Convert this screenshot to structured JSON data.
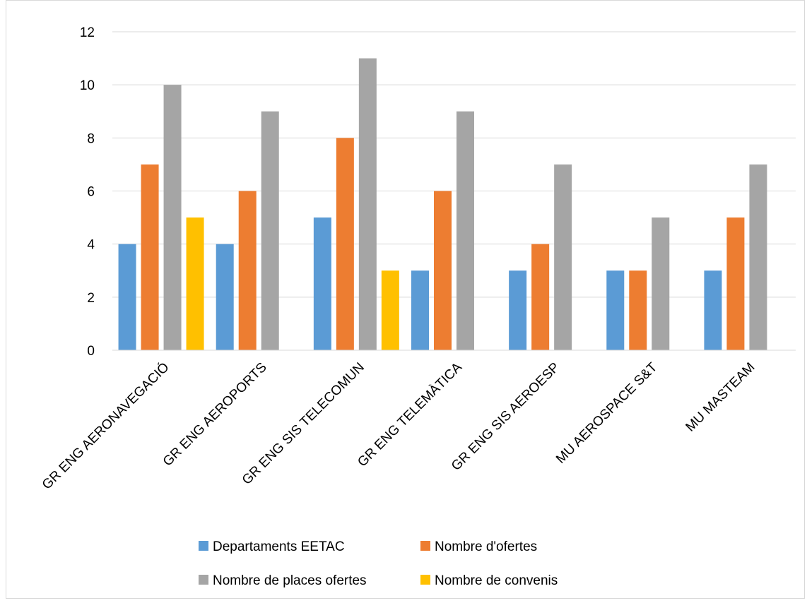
{
  "chart_data": {
    "type": "bar",
    "title": "",
    "xlabel": "",
    "ylabel": "",
    "ylim": [
      0,
      12
    ],
    "yticks": [
      0,
      2,
      4,
      6,
      8,
      10,
      12
    ],
    "grid": true,
    "legend_position": "bottom",
    "categories": [
      "GR ENG AERONAVEGACIÓ",
      "GR ENG AEROPORTS",
      "GR ENG SIS TELECOMUN",
      "GR ENG TELEMÀTICA",
      "GR ENG SIS AEROESP",
      "MU AEROSPACE S&T",
      "MU MASTEAM"
    ],
    "series": [
      {
        "name": "Departaments EETAC",
        "color": "#5b9bd5",
        "values": [
          4,
          4,
          5,
          3,
          3,
          3,
          3
        ]
      },
      {
        "name": "Nombre d'ofertes",
        "color": "#ed7d31",
        "values": [
          7,
          6,
          8,
          6,
          4,
          3,
          5
        ]
      },
      {
        "name": "Nombre de places ofertes",
        "color": "#a5a5a5",
        "values": [
          10,
          9,
          11,
          9,
          7,
          5,
          7
        ]
      },
      {
        "name": "Nombre de convenis",
        "color": "#ffc000",
        "values": [
          5,
          0,
          3,
          0,
          0,
          0,
          0
        ]
      }
    ]
  }
}
